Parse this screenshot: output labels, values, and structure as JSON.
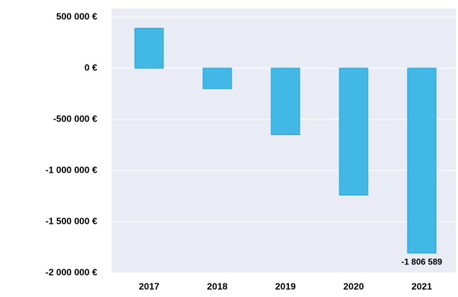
{
  "chart_data": {
    "type": "bar",
    "categories": [
      "2017",
      "2018",
      "2019",
      "2020",
      "2021"
    ],
    "values": [
      390000,
      -200000,
      -650000,
      -1240000,
      -1806589
    ],
    "value_labels": [
      null,
      null,
      null,
      null,
      "-1 806 589"
    ],
    "color": "#41b8e6",
    "ylim": [
      -2000000,
      500000
    ],
    "yticks": [
      {
        "value": -2000000,
        "label": "-2 000 000 €"
      },
      {
        "value": -1500000,
        "label": "-1 500 000 €"
      },
      {
        "value": -1000000,
        "label": "-1 000 000 €"
      },
      {
        "value": -500000,
        "label": "-500 000 €"
      },
      {
        "value": 0,
        "label": "0 €"
      },
      {
        "value": 500000,
        "label": "500 000 €"
      }
    ],
    "grid": true
  }
}
